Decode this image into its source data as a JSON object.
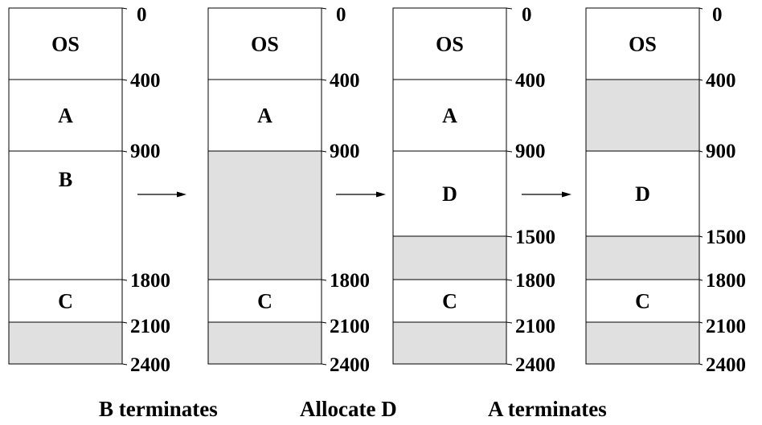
{
  "colors": {
    "free": "#e0e0e0",
    "used": "#ffffff",
    "line": "#000000"
  },
  "states": [
    {
      "marks": [
        "0",
        "400",
        "900",
        "1800",
        "2100",
        "2400"
      ],
      "segments": [
        {
          "start": 0,
          "end": 400,
          "label": "OS",
          "free": false
        },
        {
          "start": 400,
          "end": 900,
          "label": "A",
          "free": false
        },
        {
          "start": 900,
          "end": 1800,
          "label": "B",
          "free": false
        },
        {
          "start": 1800,
          "end": 2100,
          "label": "C",
          "free": false
        },
        {
          "start": 2100,
          "end": 2400,
          "label": "",
          "free": true
        }
      ]
    },
    {
      "marks": [
        "0",
        "400",
        "900",
        "1800",
        "2100",
        "2400"
      ],
      "segments": [
        {
          "start": 0,
          "end": 400,
          "label": "OS",
          "free": false
        },
        {
          "start": 400,
          "end": 900,
          "label": "A",
          "free": false
        },
        {
          "start": 900,
          "end": 1800,
          "label": "",
          "free": true
        },
        {
          "start": 1800,
          "end": 2100,
          "label": "C",
          "free": false
        },
        {
          "start": 2100,
          "end": 2400,
          "label": "",
          "free": true
        }
      ]
    },
    {
      "marks": [
        "0",
        "400",
        "900",
        "1500",
        "1800",
        "2100",
        "2400"
      ],
      "segments": [
        {
          "start": 0,
          "end": 400,
          "label": "OS",
          "free": false
        },
        {
          "start": 400,
          "end": 900,
          "label": "A",
          "free": false
        },
        {
          "start": 900,
          "end": 1500,
          "label": "D",
          "free": false
        },
        {
          "start": 1500,
          "end": 1800,
          "label": "",
          "free": true
        },
        {
          "start": 1800,
          "end": 2100,
          "label": "C",
          "free": false
        },
        {
          "start": 2100,
          "end": 2400,
          "label": "",
          "free": true
        }
      ]
    },
    {
      "marks": [
        "0",
        "400",
        "900",
        "1500",
        "1800",
        "2100",
        "2400"
      ],
      "segments": [
        {
          "start": 0,
          "end": 400,
          "label": "OS",
          "free": false
        },
        {
          "start": 400,
          "end": 900,
          "label": "",
          "free": true
        },
        {
          "start": 900,
          "end": 1500,
          "label": "D",
          "free": false
        },
        {
          "start": 1500,
          "end": 1800,
          "label": "",
          "free": true
        },
        {
          "start": 1800,
          "end": 2100,
          "label": "C",
          "free": false
        },
        {
          "start": 2100,
          "end": 2400,
          "label": "",
          "free": true
        }
      ]
    }
  ],
  "captions": {
    "b_terminates": "B terminates",
    "allocate_d": "Allocate D",
    "a_terminates": "A terminates"
  }
}
